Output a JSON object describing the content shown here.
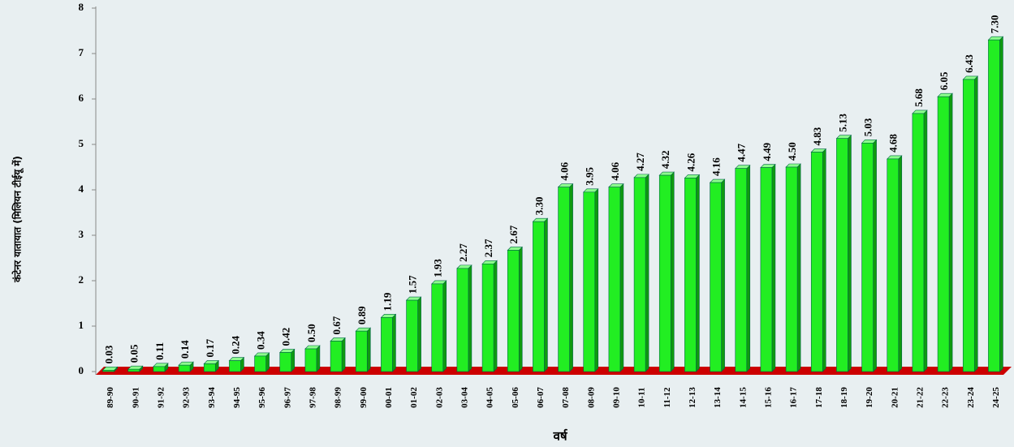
{
  "chart_data": {
    "type": "bar",
    "y_label": "कंटेनर यातायात (मिलियन टीईयू में)",
    "x_label": "वर्ष",
    "categories": [
      "89-90",
      "90-91",
      "91-92",
      "92-93",
      "93-94",
      "94-95",
      "95-96",
      "96-97",
      "97-98",
      "98-99",
      "99-00",
      "00-01",
      "01-02",
      "02-03",
      "03-04",
      "04-05",
      "05-06",
      "06-07",
      "07-08",
      "08-09",
      "09-10",
      "10-11",
      "11-12",
      "12-13",
      "13-14",
      "14-15",
      "15-16",
      "16-17",
      "17-18",
      "18-19",
      "19-20",
      "20-21",
      "21-22",
      "22-23",
      "23-24",
      "24-25"
    ],
    "values": [
      0.03,
      0.05,
      0.11,
      0.14,
      0.17,
      0.24,
      0.34,
      0.42,
      0.5,
      0.67,
      0.89,
      1.19,
      1.57,
      1.93,
      2.27,
      2.37,
      2.67,
      3.3,
      4.06,
      3.95,
      4.06,
      4.27,
      4.32,
      4.26,
      4.16,
      4.47,
      4.49,
      4.5,
      4.83,
      5.13,
      5.03,
      4.68,
      5.68,
      6.05,
      6.43,
      7.3
    ],
    "value_labels": [
      "0.03",
      "0.05",
      "0.11",
      "0.14",
      "0.17",
      "0.24",
      "0.34",
      "0.42",
      "0.50",
      "0.67",
      "0.89",
      "1.19",
      "1.57",
      "1.93",
      "2.27",
      "2.37",
      "2.67",
      "3.30",
      "4.06",
      "3.95",
      "4.06",
      "4.27",
      "4.32",
      "4.26",
      "4.16",
      "4.47",
      "4.49",
      "4.50",
      "4.83",
      "5.13",
      "5.03",
      "4.68",
      "5.68",
      "6.05",
      "6.43",
      "7.30"
    ],
    "color": "#22ee22",
    "ylim": [
      0,
      8
    ],
    "yticks": [
      0,
      1,
      2,
      3,
      4,
      5,
      6,
      7,
      8
    ]
  }
}
